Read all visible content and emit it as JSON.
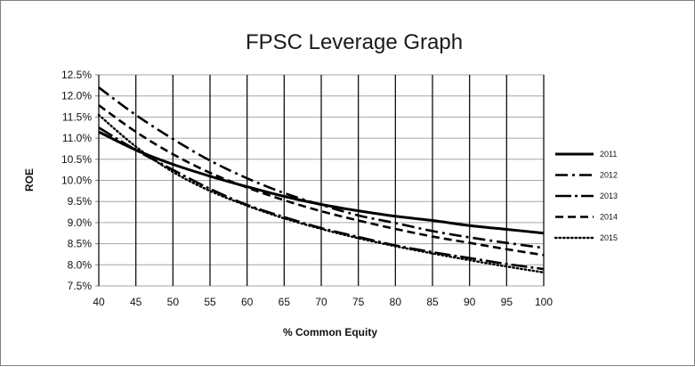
{
  "chart_data": {
    "type": "line",
    "title": "FPSC Leverage Graph",
    "xlabel": "% Common Equity",
    "ylabel": "ROE",
    "x": [
      40,
      45,
      50,
      55,
      60,
      65,
      70,
      75,
      80,
      85,
      90,
      95,
      100
    ],
    "xlim": [
      40,
      100
    ],
    "ylim": [
      7.5,
      12.5
    ],
    "x_ticks": [
      "40",
      "45",
      "50",
      "55",
      "60",
      "65",
      "70",
      "75",
      "80",
      "85",
      "90",
      "95",
      "100"
    ],
    "y_ticks": [
      "7.5%",
      "8.0%",
      "8.5%",
      "9.0%",
      "9.5%",
      "10.0%",
      "10.5%",
      "11.0%",
      "11.5%",
      "12.0%",
      "12.5%"
    ],
    "grid": true,
    "legend_position": "right",
    "series": [
      {
        "name": "2011",
        "dash": "solid",
        "values": [
          11.15,
          10.72,
          10.38,
          10.1,
          9.85,
          9.62,
          9.43,
          9.28,
          9.15,
          9.05,
          8.93,
          8.84,
          8.75
        ]
      },
      {
        "name": "2012",
        "dash": "dash-dot",
        "values": [
          12.2,
          11.55,
          10.98,
          10.47,
          10.05,
          9.7,
          9.42,
          9.17,
          8.99,
          8.8,
          8.65,
          8.52,
          8.4
        ]
      },
      {
        "name": "2013",
        "dash": "long-dash-dot",
        "values": [
          11.25,
          10.72,
          10.25,
          9.8,
          9.42,
          9.13,
          8.87,
          8.66,
          8.46,
          8.3,
          8.16,
          8.02,
          7.9
        ]
      },
      {
        "name": "2014",
        "dash": "dash",
        "values": [
          11.78,
          11.15,
          10.62,
          10.18,
          9.83,
          9.53,
          9.27,
          9.05,
          8.85,
          8.67,
          8.52,
          8.37,
          8.23
        ]
      },
      {
        "name": "2015",
        "dash": "dot",
        "values": [
          11.55,
          10.8,
          10.2,
          9.75,
          9.4,
          9.1,
          8.85,
          8.63,
          8.44,
          8.27,
          8.11,
          7.96,
          7.82
        ]
      }
    ]
  }
}
